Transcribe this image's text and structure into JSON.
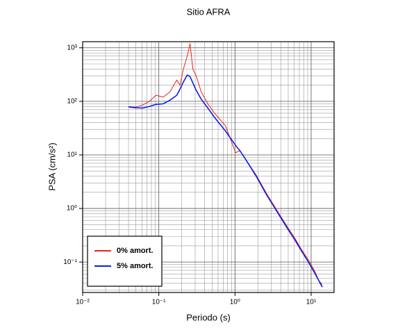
{
  "chart_data": {
    "type": "line",
    "title": "Sitio AFRA",
    "x_label": "Periodo (s)",
    "y_label": "PSA (cm/s²)",
    "log_x": true,
    "log_y": true,
    "grid": true,
    "legend": "lower left",
    "xlim": [
      0.01,
      20
    ],
    "ylim": [
      0.027,
      1300
    ],
    "xticks": [
      {
        "value": 0.01,
        "label": "10⁻²"
      },
      {
        "value": 0.1,
        "label": "10⁻¹"
      },
      {
        "value": 1,
        "label": "10⁰"
      },
      {
        "value": 10,
        "label": "10¹"
      }
    ],
    "yticks": [
      {
        "value": 0.1,
        "label": "10⁻¹"
      },
      {
        "value": 1,
        "label": "10⁰"
      },
      {
        "value": 10,
        "label": "10¹"
      },
      {
        "value": 100,
        "label": "10²"
      },
      {
        "value": 1000,
        "label": "10³"
      }
    ],
    "x": [
      0.04,
      0.049,
      0.061,
      0.075,
      0.092,
      0.114,
      0.14,
      0.172,
      0.19,
      0.21,
      0.236,
      0.257,
      0.28,
      0.31,
      0.36,
      0.44,
      0.54,
      0.75,
      1.02,
      1.16,
      1.4,
      1.9,
      2.6,
      3.6,
      4.9,
      6.1,
      7.5,
      9.2,
      11.3,
      12.6,
      14
    ],
    "series": [
      {
        "name": "0% amort.",
        "color": "#e8241c",
        "width": 1,
        "values": [
          80,
          78,
          85,
          100,
          130,
          120,
          150,
          250,
          200,
          400,
          700,
          1200,
          400,
          300,
          150,
          90,
          60,
          35,
          11,
          12,
          8,
          4.2,
          1.9,
          0.9,
          0.45,
          0.28,
          0.17,
          0.11,
          0.065,
          0.045,
          0.038
        ]
      },
      {
        "name": "5% amort.",
        "color": "#0a1ee6",
        "width": 1.6,
        "values": [
          79,
          76,
          75,
          80,
          88,
          90,
          105,
          130,
          170,
          230,
          310,
          290,
          220,
          160,
          110,
          75,
          50,
          28,
          15,
          12,
          8,
          4,
          1.8,
          0.85,
          0.42,
          0.26,
          0.16,
          0.1,
          0.06,
          0.045,
          0.034
        ]
      }
    ]
  }
}
